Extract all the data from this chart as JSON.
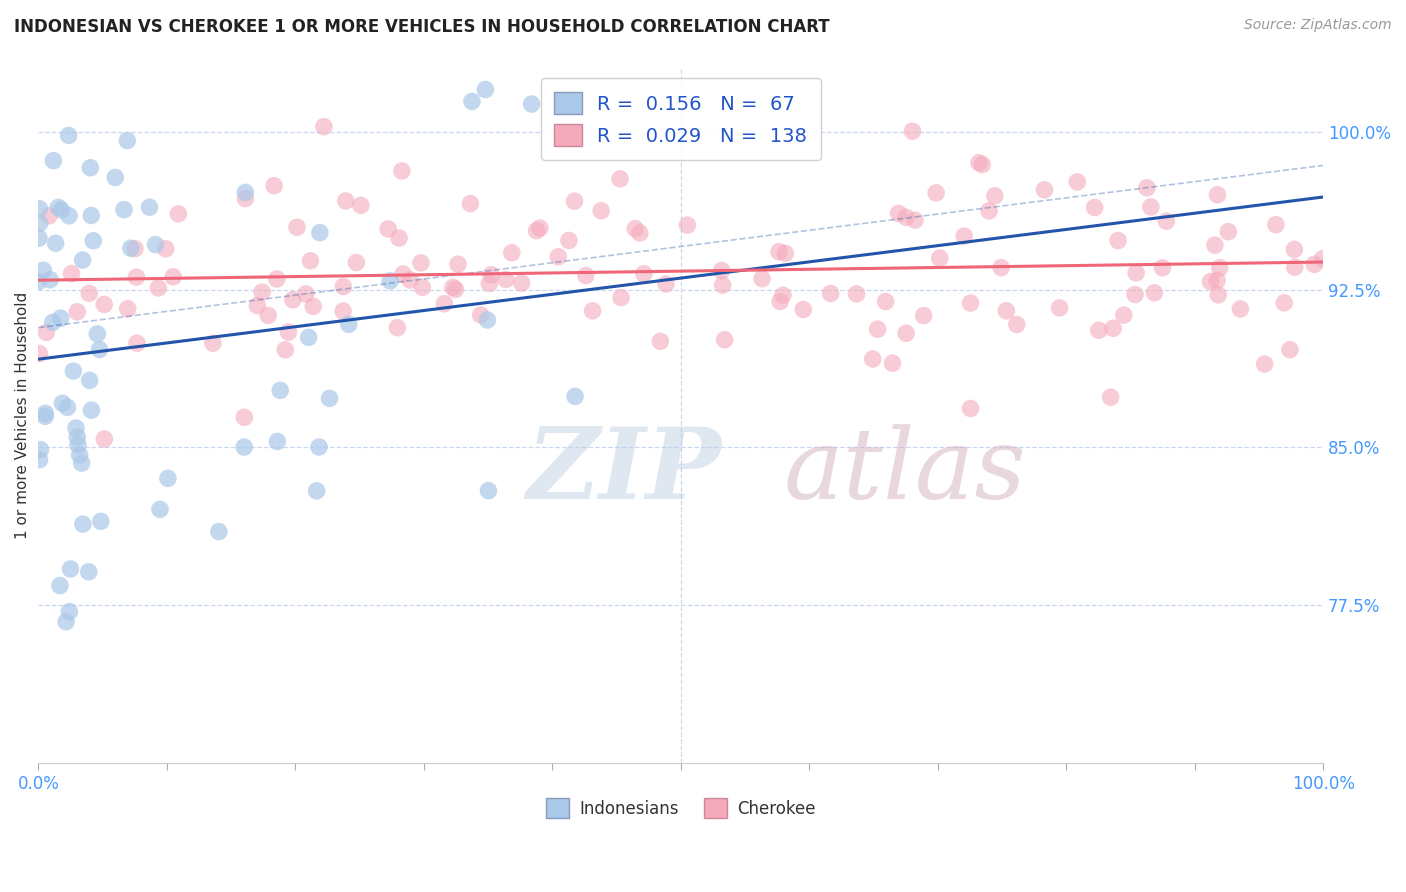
{
  "title": "INDONESIAN VS CHEROKEE 1 OR MORE VEHICLES IN HOUSEHOLD CORRELATION CHART",
  "source_text": "Source: ZipAtlas.com",
  "ylabel": "1 or more Vehicles in Household",
  "watermark": "ZIPatlas",
  "legend_items": [
    {
      "label": "Indonesians",
      "color": "#aac8e8",
      "R": 0.156,
      "N": 67
    },
    {
      "label": "Cherokee",
      "color": "#f4aabb",
      "R": 0.029,
      "N": 138
    }
  ],
  "xlim": [
    0.0,
    100.0
  ],
  "ylim": [
    70.0,
    103.0
  ],
  "yticks": [
    77.5,
    85.0,
    92.5,
    100.0
  ],
  "tick_color": "#4499ff",
  "grid_color": "#c8d8f0",
  "blue_scatter_color": "#aac8e8",
  "pink_scatter_color": "#f4aabb",
  "blue_line_color": "#2255aa",
  "pink_line_color": "#ee6677",
  "title_color": "#222222",
  "source_color": "#999999",
  "watermark_color_zip": "#b8cce0",
  "watermark_color_atlas": "#d0a8b8",
  "legend_text_color": "#2255cc"
}
